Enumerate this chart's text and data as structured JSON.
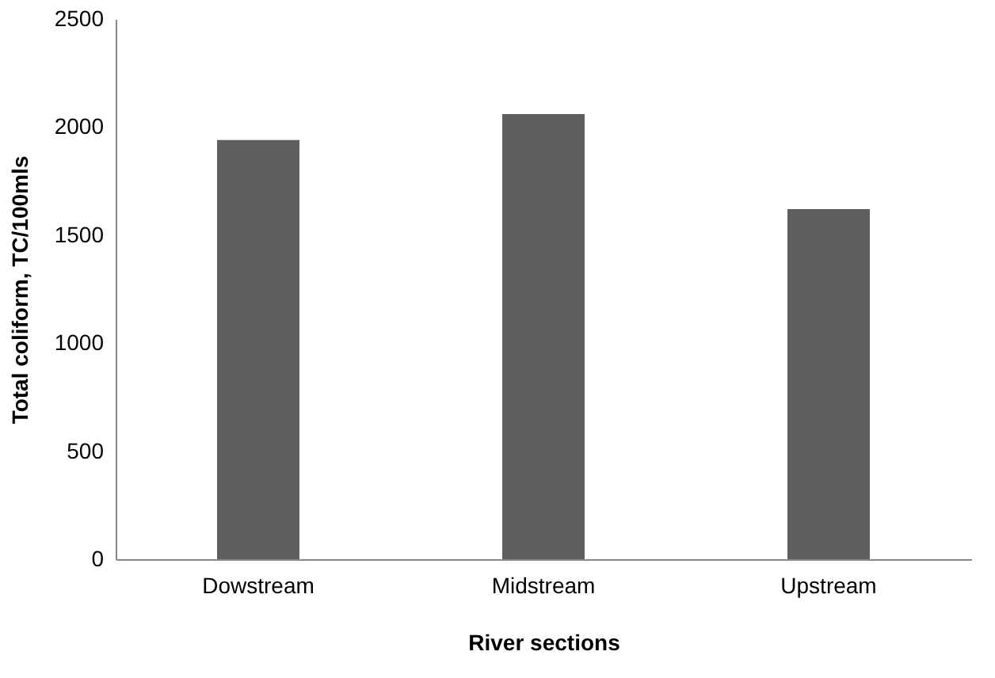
{
  "chart_data": {
    "type": "bar",
    "categories": [
      "Dowstream",
      "Midstream",
      "Upstream"
    ],
    "values": [
      1940,
      2060,
      1620
    ],
    "color": "#5f5f5f",
    "xlabel": "River sections",
    "ylabel": "Total coliform, TC/100mls",
    "ylim": [
      0,
      2500
    ],
    "yticks": [
      0,
      500,
      1000,
      1500,
      2000,
      2500
    ],
    "grid": false
  }
}
